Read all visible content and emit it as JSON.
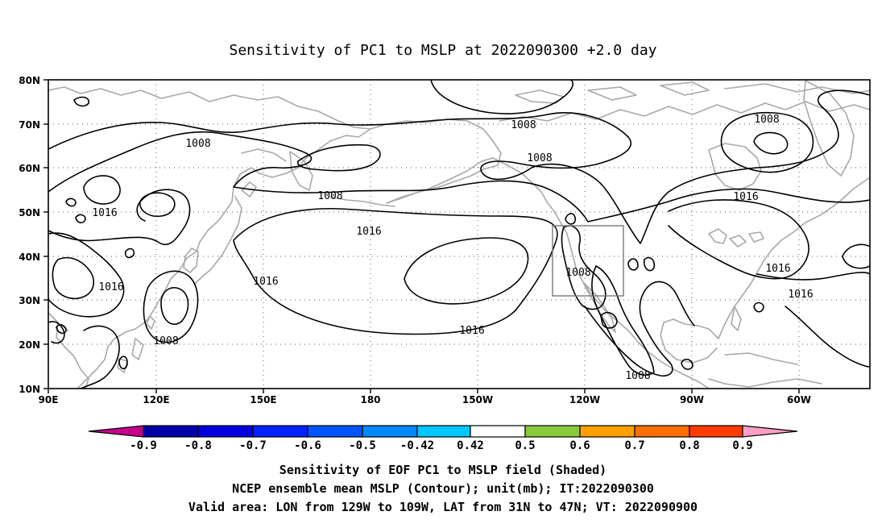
{
  "title": "Sensitivity of PC1 to MSLP at 2022090300 +2.0 day",
  "map": {
    "lat_labels": [
      "80N",
      "70N",
      "60N",
      "50N",
      "40N",
      "30N",
      "20N",
      "10N"
    ],
    "lon_labels": [
      "90E",
      "120E",
      "150E",
      "180",
      "150W",
      "120W",
      "90W",
      "60W"
    ],
    "contour_labels": [
      "1008",
      "1008",
      "1008",
      "1008",
      "1008",
      "1008",
      "1008",
      "1016",
      "1016",
      "1016",
      "1016",
      "1016",
      "1016",
      "1016",
      "1016"
    ],
    "valid_box": {
      "lon_range": [
        "129W",
        "109W"
      ],
      "lat_range": [
        "31N",
        "47N"
      ]
    }
  },
  "colorbar": {
    "labels": [
      "-0.9",
      "-0.8",
      "-0.7",
      "-0.6",
      "-0.5",
      "-0.42",
      "0.42",
      "0.5",
      "0.6",
      "0.7",
      "0.8",
      "0.9"
    ],
    "colors": [
      "#c8008a",
      "#0000a8",
      "#0000e0",
      "#0022ff",
      "#0055ff",
      "#0088ff",
      "#00c8ff",
      "#ffffff",
      "#8ac83c",
      "#ffa000",
      "#ff6e00",
      "#ff3c00",
      "#ff0000",
      "#ff9ec8"
    ]
  },
  "footer": {
    "line1": "Sensitivity of EOF PC1 to MSLP field (Shaded)",
    "line2": "NCEP ensemble mean MSLP (Contour); unit(mb); IT:2022090300",
    "line3": "Valid area: LON from 129W to 109W, LAT from 31N to 47N; VT: 2022090900"
  }
}
